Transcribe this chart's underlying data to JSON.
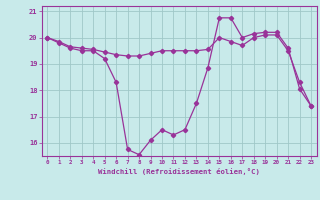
{
  "xlabel": "Windchill (Refroidissement éolien,°C)",
  "x_ticks": [
    0,
    1,
    2,
    3,
    4,
    5,
    6,
    7,
    8,
    9,
    10,
    11,
    12,
    13,
    14,
    15,
    16,
    17,
    18,
    19,
    20,
    21,
    22,
    23
  ],
  "ylim": [
    15.5,
    21.2
  ],
  "yticks": [
    16,
    17,
    18,
    19,
    20,
    21
  ],
  "ytick_labels": [
    "16",
    "17",
    "18",
    "19",
    "20",
    "21"
  ],
  "bg_color": "#c8eaea",
  "grid_color": "#a0c8c8",
  "line_color": "#993399",
  "series1": [
    20.0,
    19.8,
    19.6,
    19.5,
    19.5,
    19.2,
    18.3,
    15.75,
    15.55,
    16.1,
    16.5,
    16.3,
    16.5,
    17.5,
    18.85,
    20.75,
    20.75,
    20.0,
    20.15,
    20.2,
    20.2,
    19.6,
    18.05,
    17.4
  ],
  "series2": [
    20.0,
    19.85,
    19.65,
    19.6,
    19.55,
    19.45,
    19.35,
    19.3,
    19.3,
    19.4,
    19.5,
    19.5,
    19.5,
    19.5,
    19.55,
    20.0,
    19.85,
    19.7,
    20.0,
    20.1,
    20.1,
    19.5,
    18.3,
    17.4
  ]
}
